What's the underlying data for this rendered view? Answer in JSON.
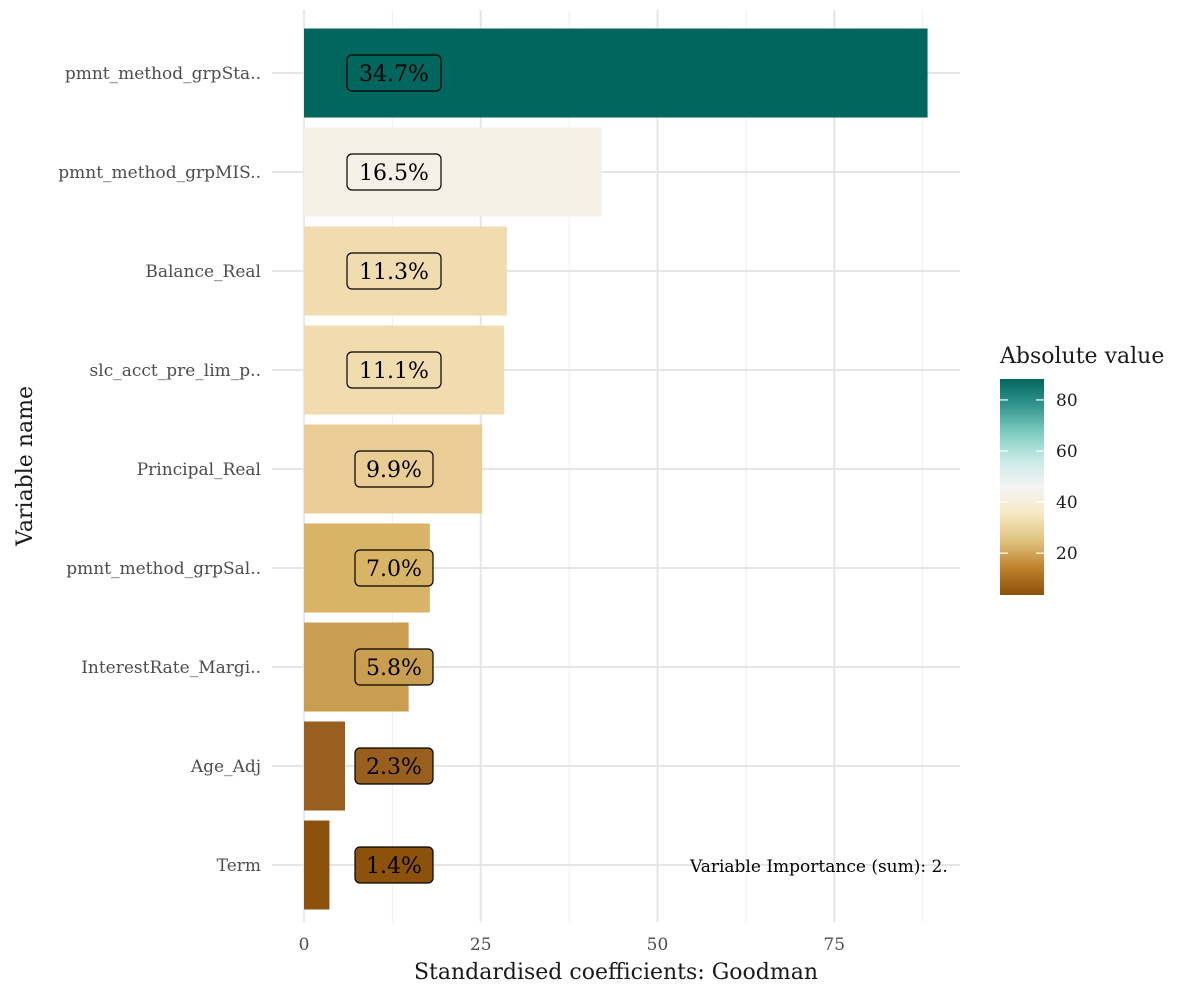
{
  "chart_data": {
    "type": "bar",
    "orientation": "horizontal",
    "categories": [
      "pmnt_method_grpSta..",
      "pmnt_method_grpMIS..",
      "Balance_Real",
      "slc_acct_pre_lim_p..",
      "Principal_Real",
      "pmnt_method_grpSal..",
      "InterestRate_Margi..",
      "Age_Adj",
      "Term"
    ],
    "values": [
      88.2,
      42.1,
      28.7,
      28.3,
      25.2,
      17.8,
      14.8,
      5.8,
      3.6
    ],
    "labels": [
      "34.7%",
      "16.5%",
      "11.3%",
      "11.1%",
      "9.9%",
      "7.0%",
      "5.8%",
      "2.3%",
      "1.4%"
    ],
    "colors": [
      "#01665e",
      "#f5f0e5",
      "#f1dcb0",
      "#f1dcb0",
      "#e9cd95",
      "#d9b466",
      "#c99e51",
      "#985f1e",
      "#8c510a"
    ],
    "xlabel": "Standardised coefficients: Goodman",
    "ylabel": "Variable name",
    "xlim": [
      0,
      92.5
    ],
    "xticks": [
      0,
      25,
      50,
      75
    ],
    "grid": true,
    "annotation": "Variable Importance (sum): 2.",
    "legend": {
      "title": "Absolute value",
      "placement": "right",
      "range": [
        3.6,
        88.2
      ],
      "ticks": [
        20,
        40,
        60,
        80
      ],
      "gradient": [
        "#8c510a",
        "#bf812d",
        "#dfc27d",
        "#f6e8c3",
        "#f5f5f5",
        "#c7eae5",
        "#80cdc1",
        "#35978f",
        "#01665e"
      ]
    }
  }
}
